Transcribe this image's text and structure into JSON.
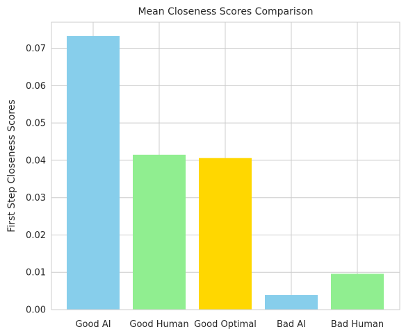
{
  "chart_data": {
    "type": "bar",
    "title": "Mean Closeness Scores Comparison",
    "xlabel": "",
    "ylabel": "First Step Closeness Scores",
    "categories": [
      "Good AI",
      "Good Human",
      "Good Optimal",
      "Bad AI",
      "Bad Human"
    ],
    "values": [
      0.0733,
      0.0415,
      0.0406,
      0.0039,
      0.0096
    ],
    "colors": [
      "#87CEEB",
      "#90EE90",
      "#FFD700",
      "#87CEEB",
      "#90EE90"
    ],
    "ylim": [
      0,
      0.077
    ],
    "yticks": [
      "0.00",
      "0.01",
      "0.02",
      "0.03",
      "0.04",
      "0.05",
      "0.06",
      "0.07"
    ],
    "ytick_values": [
      0,
      0.01,
      0.02,
      0.03,
      0.04,
      0.05,
      0.06,
      0.07
    ],
    "grid": true,
    "legend": "none"
  }
}
